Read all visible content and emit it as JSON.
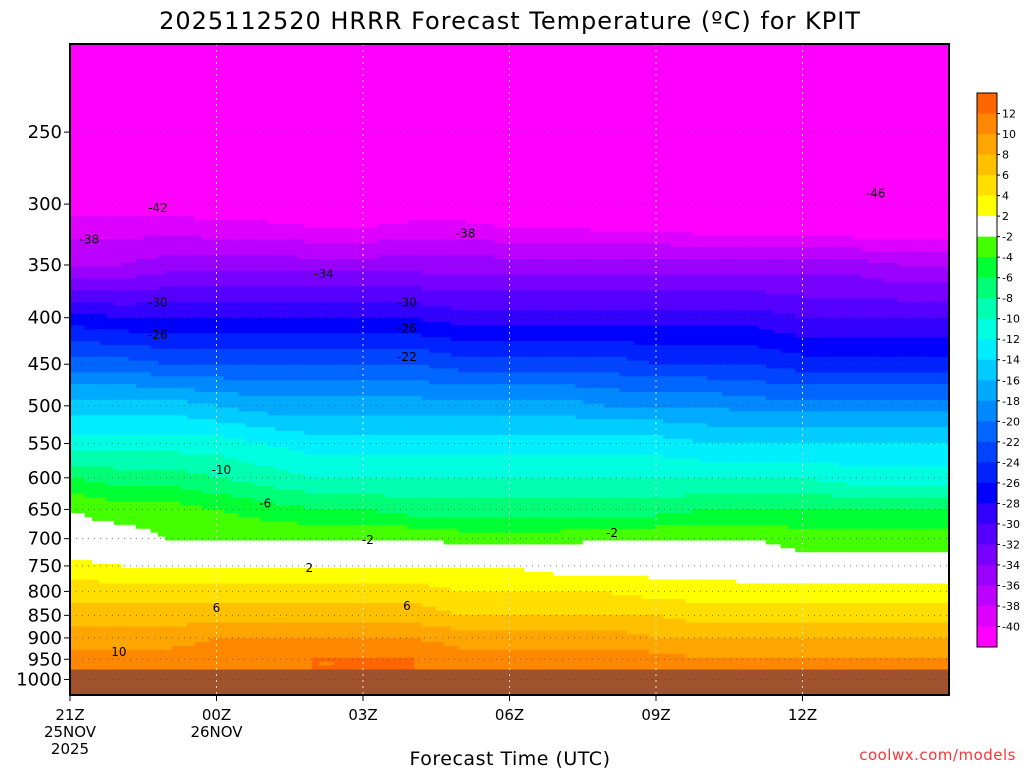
{
  "chart_data": {
    "type": "time-height contour",
    "title": "2025112520 HRRR Forecast Temperature (ºC) for KPIT",
    "xlabel": "Forecast Time (UTC)",
    "ylabel": "",
    "credit": "coolwx.com/models",
    "x_ticks": [
      {
        "hour": 0,
        "label": "21Z",
        "sub1": "25NOV",
        "sub2": "2025"
      },
      {
        "hour": 3,
        "label": "00Z",
        "sub1": "26NOV",
        "sub2": ""
      },
      {
        "hour": 6,
        "label": "03Z",
        "sub1": "",
        "sub2": ""
      },
      {
        "hour": 9,
        "label": "06Z",
        "sub1": "",
        "sub2": ""
      },
      {
        "hour": 12,
        "label": "09Z",
        "sub1": "",
        "sub2": ""
      },
      {
        "hour": 15,
        "label": "12Z",
        "sub1": "",
        "sub2": ""
      }
    ],
    "x_range_hours": [
      0,
      18
    ],
    "y_ticks": [
      "250",
      "300",
      "350",
      "400",
      "450",
      "500",
      "550",
      "600",
      "650",
      "700",
      "750",
      "800",
      "850",
      "900",
      "950",
      "1000"
    ],
    "y_range_hPa": [
      1040,
      200
    ],
    "y_scale": "log",
    "colorbar": {
      "labels": [
        "12",
        "10",
        "8",
        "6",
        "4",
        "2",
        "-2",
        "-4",
        "-6",
        "-8",
        "-10",
        "-12",
        "-14",
        "-16",
        "-18",
        "-20",
        "-22",
        "-24",
        "-26",
        "-28",
        "-30",
        "-32",
        "-34",
        "-36",
        "-38",
        "-40"
      ],
      "colors": [
        "#ff6600",
        "#ff8800",
        "#ffa500",
        "#ffc000",
        "#ffde00",
        "#ffff00",
        "#ffffff",
        "#44ff00",
        "#00ff33",
        "#00ff77",
        "#00ffb0",
        "#00ffe0",
        "#00eeff",
        "#00ccff",
        "#00aaff",
        "#0088ff",
        "#0066ff",
        "#0044ff",
        "#0022ff",
        "#0000ff",
        "#3300ff",
        "#5500ff",
        "#7700ff",
        "#9900ff",
        "#bb00ff",
        "#dd00ff",
        "#ff00ff"
      ]
    },
    "ground_color": "#a0522d",
    "times": [
      0,
      1,
      2,
      3,
      4,
      5,
      6,
      7,
      8,
      9,
      10,
      11,
      12,
      13,
      14,
      15,
      16,
      17,
      18
    ],
    "levels_hPa": [
      200,
      250,
      300,
      350,
      400,
      450,
      500,
      550,
      600,
      650,
      700,
      750,
      800,
      850,
      900,
      950,
      975
    ],
    "temperature_C": [
      [
        -50,
        -50,
        -50,
        -50,
        -52,
        -52,
        -52,
        -52,
        -52,
        -52,
        -52,
        -52,
        -52,
        -52,
        -52,
        -52,
        -52,
        -52,
        -52
      ],
      [
        -44,
        -43,
        -45,
        -46,
        -47,
        -47,
        -48,
        -49,
        -49,
        -48,
        -48,
        -48,
        -48,
        -48,
        -48,
        -48,
        -48,
        -48,
        -48
      ],
      [
        -41,
        -41,
        -41,
        -42,
        -42,
        -43,
        -43,
        -42,
        -42,
        -43,
        -43,
        -44,
        -44,
        -45,
        -45,
        -45,
        -46,
        -46,
        -46
      ],
      [
        -36,
        -36,
        -35,
        -35,
        -35,
        -35,
        -35,
        -35,
        -35,
        -35,
        -35,
        -35,
        -35,
        -35,
        -35,
        -35,
        -35,
        -36,
        -36
      ],
      [
        -27,
        -28,
        -28,
        -28,
        -28,
        -28,
        -28,
        -28,
        -29,
        -29,
        -29,
        -29,
        -29,
        -29,
        -29,
        -30,
        -30,
        -30,
        -30
      ],
      [
        -21,
        -21,
        -22,
        -22,
        -22,
        -22,
        -22,
        -22,
        -23,
        -23,
        -23,
        -23,
        -24,
        -24,
        -24,
        -25,
        -25,
        -25,
        -25
      ],
      [
        -15,
        -15,
        -15,
        -16,
        -17,
        -17,
        -17,
        -17,
        -17,
        -17,
        -17,
        -18,
        -18,
        -18,
        -19,
        -19,
        -19,
        -19,
        -19
      ],
      [
        -11,
        -11,
        -11,
        -11,
        -12,
        -13,
        -13,
        -13,
        -13,
        -13,
        -13,
        -13,
        -13,
        -14,
        -14,
        -14,
        -14,
        -14,
        -14
      ],
      [
        -6,
        -7,
        -7,
        -8,
        -9,
        -10,
        -10,
        -10,
        -10,
        -10,
        -10,
        -10,
        -10,
        -10,
        -10,
        -10,
        -11,
        -11,
        -11
      ],
      [
        -2,
        -3,
        -3,
        -4,
        -5,
        -6,
        -6,
        -7,
        -7,
        -7,
        -7,
        -7,
        -7,
        -6,
        -6,
        -6,
        -6,
        -6,
        -6
      ],
      [
        -1,
        -1,
        -2,
        -2,
        -2,
        -2,
        -2,
        -2,
        -3,
        -3,
        -3,
        -2,
        -2,
        -2,
        -2,
        -3,
        -3,
        -3,
        -3
      ],
      [
        3,
        2,
        2,
        2,
        2,
        2,
        2,
        2,
        2,
        2,
        1,
        1,
        1,
        1,
        0,
        -1,
        -1,
        -1,
        -1
      ],
      [
        5,
        5,
        5,
        5,
        5,
        5,
        5,
        5,
        4,
        4,
        4,
        4,
        3,
        3,
        3,
        3,
        3,
        3,
        3
      ],
      [
        7,
        7,
        7,
        7,
        7,
        7,
        7,
        7,
        6,
        6,
        6,
        6,
        6,
        5,
        5,
        5,
        5,
        5,
        5
      ],
      [
        9,
        9,
        9,
        10,
        10,
        10,
        10,
        10,
        9,
        9,
        9,
        9,
        8,
        8,
        8,
        8,
        8,
        8,
        8
      ],
      [
        11,
        11,
        11,
        11,
        11,
        12,
        12,
        12,
        11,
        11,
        11,
        11,
        11,
        10,
        10,
        10,
        10,
        10,
        10
      ],
      [
        12,
        12,
        12,
        12,
        12,
        12,
        12,
        12,
        12,
        12,
        12,
        12,
        12,
        12,
        12,
        11,
        11,
        11,
        11
      ]
    ],
    "contour_labels": [
      {
        "text": "-42",
        "hour": 1.8,
        "hPa": 303
      },
      {
        "text": "-46",
        "hour": 16.5,
        "hPa": 292
      },
      {
        "text": "-38",
        "hour": 0.4,
        "hPa": 328
      },
      {
        "text": "-38",
        "hour": 8.1,
        "hPa": 323
      },
      {
        "text": "-34",
        "hour": 5.2,
        "hPa": 358
      },
      {
        "text": "-30",
        "hour": 1.8,
        "hPa": 385
      },
      {
        "text": "-30",
        "hour": 6.9,
        "hPa": 385
      },
      {
        "text": "-26",
        "hour": 1.8,
        "hPa": 418
      },
      {
        "text": "-26",
        "hour": 6.9,
        "hPa": 411
      },
      {
        "text": "-22",
        "hour": 6.9,
        "hPa": 442
      },
      {
        "text": "-10",
        "hour": 3.1,
        "hPa": 588
      },
      {
        "text": "-6",
        "hour": 4.0,
        "hPa": 640
      },
      {
        "text": "-2",
        "hour": 6.1,
        "hPa": 702
      },
      {
        "text": "-2",
        "hour": 11.1,
        "hPa": 690
      },
      {
        "text": "2",
        "hour": 4.9,
        "hPa": 754
      },
      {
        "text": "6",
        "hour": 3.0,
        "hPa": 834
      },
      {
        "text": "6",
        "hour": 6.9,
        "hPa": 830
      },
      {
        "text": "10",
        "hour": 1.0,
        "hPa": 933
      }
    ]
  }
}
